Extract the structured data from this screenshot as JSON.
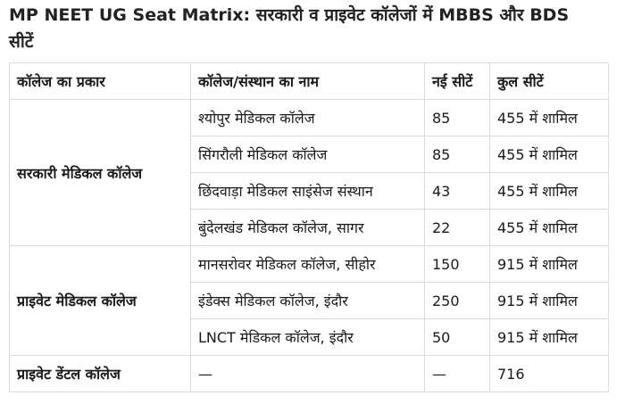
{
  "heading": "MP NEET UG Seat Matrix: सरकारी व प्राइवेट कॉलेजों में MBBS और BDS सीटें",
  "table": {
    "headers": [
      "कॉलेज का प्रकार",
      "कॉलेज/संस्थान का नाम",
      "नई सीटें",
      "कुल सीटें"
    ],
    "groups": [
      {
        "type": "सरकारी मेडिकल कॉलेज",
        "rows": [
          {
            "name": "श्योपुर मेडिकल कॉलेज",
            "new": "85",
            "total": "455 में शामिल"
          },
          {
            "name": "सिंगरौली मेडिकल कॉलेज",
            "new": "85",
            "total": "455 में शामिल"
          },
          {
            "name": "छिंदवाड़ा मेडिकल साइंसेज संस्थान",
            "new": "43",
            "total": "455 में शामिल"
          },
          {
            "name": "बुंदेलखंड मेडिकल कॉलेज, सागर",
            "new": "22",
            "total": "455 में शामिल"
          }
        ]
      },
      {
        "type": "प्राइवेट मेडिकल कॉलेज",
        "rows": [
          {
            "name": "मानसरोवर मेडिकल कॉलेज, सीहोर",
            "new": "150",
            "total": "915 में शामिल"
          },
          {
            "name": "इंडेक्स मेडिकल कॉलेज, इंदौर",
            "new": "250",
            "total": "915 में शामिल"
          },
          {
            "name": "LNCT मेडिकल कॉलेज, इंदौर",
            "new": "50",
            "total": "915 में शामिल"
          }
        ]
      },
      {
        "type": "प्राइवेट डेंटल कॉलेज",
        "rows": [
          {
            "name": "—",
            "new": "—",
            "total": "716"
          }
        ]
      }
    ]
  }
}
